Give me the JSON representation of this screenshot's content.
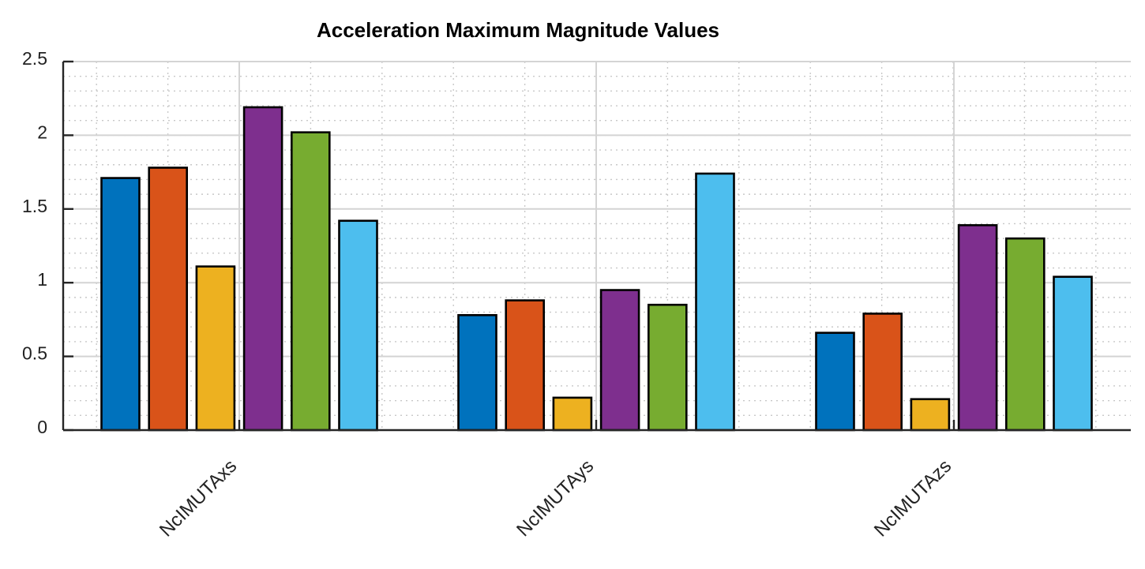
{
  "chart_data": {
    "type": "bar",
    "title": "Acceleration Maximum Magnitude Values",
    "xlabel": "",
    "ylabel": "",
    "categories": [
      "NcIMUTAxs",
      "NcIMUTAys",
      "NcIMUTAzs"
    ],
    "series": [
      {
        "values": [
          1.71,
          0.78,
          0.66
        ],
        "color": "#0072BD"
      },
      {
        "values": [
          1.78,
          0.88,
          0.79
        ],
        "color": "#D95319"
      },
      {
        "values": [
          1.11,
          0.22,
          0.21
        ],
        "color": "#EDB120"
      },
      {
        "values": [
          2.19,
          0.95,
          1.39
        ],
        "color": "#7E2F8E"
      },
      {
        "values": [
          2.02,
          0.85,
          1.3
        ],
        "color": "#77AC30"
      },
      {
        "values": [
          1.42,
          1.74,
          1.04
        ],
        "color": "#4DBEEE"
      }
    ],
    "ylim": [
      0,
      2.5
    ],
    "yticks": [
      "0",
      "0.5",
      "1",
      "1.5",
      "2",
      "2.5"
    ],
    "grid": true,
    "minor_grid": true,
    "legend": "none"
  }
}
